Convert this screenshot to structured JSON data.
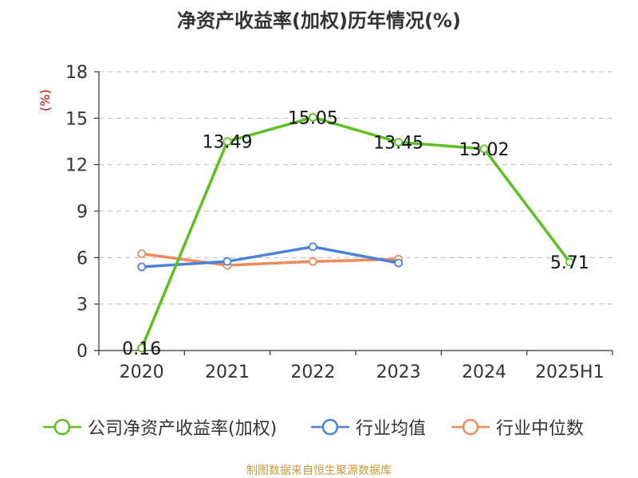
{
  "title": "净资产收益率(加权)历年情况(%)",
  "source": "制图数据来自恒生聚源数据库",
  "colors": {
    "series_company": "#5cc022",
    "series_avg": "#4e7fd9",
    "series_median": "#f08a5d",
    "axis": "#333333",
    "grid": "#bbbbbb",
    "unit": "#cc0000"
  },
  "chart_data": {
    "type": "line",
    "title": "净资产收益率(加权)历年情况(%)",
    "ylabel": "(%)",
    "xlabel": "",
    "categories": [
      "2020",
      "2021",
      "2022",
      "2023",
      "2024",
      "2025H1"
    ],
    "ylim": [
      0,
      18
    ],
    "yticks": [
      0,
      3,
      6,
      9,
      12,
      15,
      18
    ],
    "grid": true,
    "legend_position": "bottom",
    "series": [
      {
        "name": "公司净资产收益率(加权)",
        "color": "#5cc022",
        "values": [
          0.16,
          13.49,
          15.05,
          13.45,
          13.02,
          5.71
        ],
        "labels": [
          "0.16",
          "13.49",
          "15.05",
          "13.45",
          "13.02",
          "5.71"
        ]
      },
      {
        "name": "行业均值",
        "color": "#4e7fd9",
        "values": [
          5.4,
          5.75,
          6.7,
          5.65,
          null,
          null
        ]
      },
      {
        "name": "行业中位数",
        "color": "#f08a5d",
        "values": [
          6.25,
          5.5,
          5.75,
          5.9,
          null,
          null
        ]
      }
    ]
  }
}
